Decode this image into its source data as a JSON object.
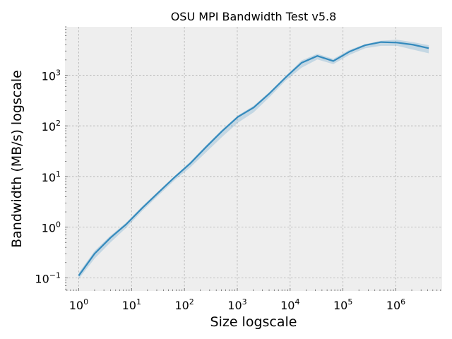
{
  "chart_data": {
    "type": "line",
    "title": "OSU MPI Bandwidth Test v5.8",
    "xlabel": "Size logscale",
    "ylabel": "Bandwidth (MB/s) logscale",
    "xscale": "log",
    "yscale": "log",
    "xlim": [
      0.55,
      7500000
    ],
    "ylim": [
      0.055,
      9000
    ],
    "grid": true,
    "x_ticks": [
      {
        "value": 1,
        "base": "10",
        "exp": "0"
      },
      {
        "value": 10,
        "base": "10",
        "exp": "1"
      },
      {
        "value": 100,
        "base": "10",
        "exp": "2"
      },
      {
        "value": 1000,
        "base": "10",
        "exp": "3"
      },
      {
        "value": 10000,
        "base": "10",
        "exp": "4"
      },
      {
        "value": 100000,
        "base": "10",
        "exp": "5"
      },
      {
        "value": 1000000,
        "base": "10",
        "exp": "6"
      }
    ],
    "y_ticks": [
      {
        "value": 0.1,
        "base": "10",
        "exp": "−1"
      },
      {
        "value": 1,
        "base": "10",
        "exp": "0"
      },
      {
        "value": 10,
        "base": "10",
        "exp": "1"
      },
      {
        "value": 100,
        "base": "10",
        "exp": "2"
      },
      {
        "value": 1000,
        "base": "10",
        "exp": "3"
      }
    ],
    "series": [
      {
        "color": "#348abd",
        "x": [
          1,
          2,
          4,
          8,
          16,
          32,
          64,
          128,
          256,
          512,
          1024,
          2048,
          4096,
          8192,
          16384,
          32768,
          65536,
          131072,
          262144,
          524288,
          1048576,
          2097152,
          4194304
        ],
        "y": [
          0.11,
          0.3,
          0.62,
          1.15,
          2.4,
          4.8,
          9.5,
          18,
          38,
          78,
          150,
          230,
          440,
          900,
          1750,
          2400,
          1900,
          2900,
          3900,
          4500,
          4400,
          4000,
          3400
        ],
        "y_low": [
          0.095,
          0.24,
          0.5,
          0.98,
          2.1,
          4.2,
          8.3,
          15,
          30,
          60,
          115,
          185,
          370,
          780,
          1400,
          2050,
          1650,
          2500,
          3400,
          3800,
          3800,
          3200,
          2700
        ],
        "y_high": [
          0.125,
          0.34,
          0.68,
          1.25,
          2.6,
          5.1,
          10,
          19.5,
          41,
          84,
          160,
          250,
          470,
          960,
          1950,
          2650,
          2100,
          3150,
          4100,
          4800,
          5000,
          4500,
          3900
        ]
      }
    ]
  },
  "colors": {
    "plot_background": "#eeeeee",
    "grid": "#b0b0b0",
    "line": "#348abd",
    "band": "#348abd"
  }
}
